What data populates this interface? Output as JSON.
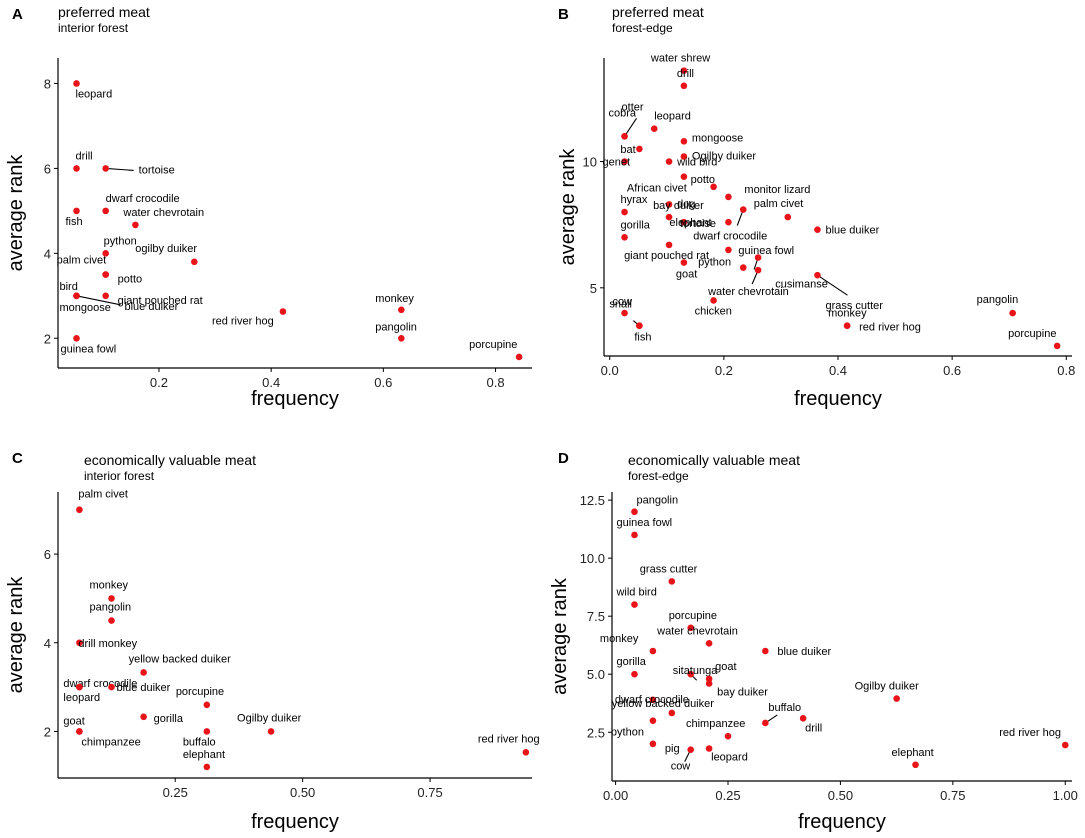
{
  "figure": {
    "colors": {
      "point": "#e8141a",
      "axis": "#000000",
      "leader": "#000000"
    }
  },
  "chart_data": [
    {
      "panel_letter": "A",
      "type": "scatter",
      "title": "preferred meat",
      "subtitle": "interior forest",
      "xlabel": "frequency",
      "ylabel": "average rank",
      "xlim": [
        0.02,
        0.865
      ],
      "ylim": [
        1.3,
        8.6
      ],
      "xticks": [
        0.2,
        0.4,
        0.6,
        0.8
      ],
      "xtick_labels": [
        "0.2",
        "0.4",
        "0.6",
        "0.8"
      ],
      "yticks": [
        2,
        4,
        6,
        8
      ],
      "ytick_labels": [
        "2",
        "4",
        "6",
        "8"
      ],
      "points": [
        {
          "label": "leopard",
          "x": 0.053,
          "y": 8.0
        },
        {
          "label": "drill",
          "x": 0.053,
          "y": 6.0
        },
        {
          "label": "tortoise",
          "x": 0.105,
          "y": 6.0
        },
        {
          "label": "dwarf crocodile",
          "x": 0.105,
          "y": 5.0
        },
        {
          "label": "fish",
          "x": 0.053,
          "y": 5.0
        },
        {
          "label": "water chevrotain",
          "x": 0.158,
          "y": 4.67
        },
        {
          "label": "python",
          "x": 0.105,
          "y": 4.0
        },
        {
          "label": "ogilby duiker",
          "x": 0.263,
          "y": 3.8
        },
        {
          "label": "palm civet",
          "x": 0.105,
          "y": 3.5
        },
        {
          "label": "potto",
          "x": 0.105,
          "y": 3.5
        },
        {
          "label": "bird",
          "x": 0.053,
          "y": 3.0
        },
        {
          "label": "giant pouched rat",
          "x": 0.105,
          "y": 3.0
        },
        {
          "label": "mongoose",
          "x": 0.053,
          "y": 3.0
        },
        {
          "label": "blue duiker",
          "x": 0.053,
          "y": 3.0
        },
        {
          "label": "monkey",
          "x": 0.632,
          "y": 2.67
        },
        {
          "label": "red river hog",
          "x": 0.421,
          "y": 2.63
        },
        {
          "label": "pangolin",
          "x": 0.632,
          "y": 2.0
        },
        {
          "label": "guinea fowl",
          "x": 0.053,
          "y": 2.0
        },
        {
          "label": "porcupine",
          "x": 0.842,
          "y": 1.56
        }
      ]
    },
    {
      "panel_letter": "B",
      "type": "scatter",
      "title": "preferred meat",
      "subtitle": "forest-edge",
      "xlabel": "frequency",
      "ylabel": "average rank",
      "xlim": [
        -0.01,
        0.81
      ],
      "ylim": [
        2.3,
        14.1
      ],
      "xticks": [
        0.0,
        0.2,
        0.4,
        0.6,
        0.8
      ],
      "xtick_labels": [
        "0.0",
        "0.2",
        "0.4",
        "0.6",
        "0.8"
      ],
      "yticks": [
        5,
        10
      ],
      "ytick_labels": [
        "5",
        "10"
      ],
      "points": [
        {
          "label": "water shrew",
          "x": 0.13,
          "y": 13.6
        },
        {
          "label": "drill",
          "x": 0.13,
          "y": 13.0
        },
        {
          "label": "otter",
          "x": 0.026,
          "y": 11.0
        },
        {
          "label": "cobra",
          "x": 0.026,
          "y": 11.0
        },
        {
          "label": "leopard",
          "x": 0.078,
          "y": 11.3
        },
        {
          "label": "mongoose",
          "x": 0.13,
          "y": 10.8
        },
        {
          "label": "Ogilby duiker",
          "x": 0.13,
          "y": 10.2
        },
        {
          "label": "bat",
          "x": 0.052,
          "y": 10.5
        },
        {
          "label": "genet",
          "x": 0.026,
          "y": 10.0
        },
        {
          "label": "wild bird",
          "x": 0.104,
          "y": 10.0
        },
        {
          "label": "African civet",
          "x": 0.13,
          "y": 9.4
        },
        {
          "label": "potto",
          "x": 0.182,
          "y": 9.0
        },
        {
          "label": "monitor lizard",
          "x": 0.208,
          "y": 8.6
        },
        {
          "label": "dog",
          "x": 0.104,
          "y": 8.3
        },
        {
          "label": "hyrax",
          "x": 0.026,
          "y": 8.0
        },
        {
          "label": "bay duiker",
          "x": 0.104,
          "y": 7.8
        },
        {
          "label": "tortoise",
          "x": 0.13,
          "y": 7.6
        },
        {
          "label": "palm civet",
          "x": 0.312,
          "y": 7.8
        },
        {
          "label": "dwarf crocodile",
          "x": 0.234,
          "y": 8.1
        },
        {
          "label": "elephant",
          "x": 0.208,
          "y": 7.6
        },
        {
          "label": "gorilla",
          "x": 0.026,
          "y": 7.0
        },
        {
          "label": "blue duiker",
          "x": 0.364,
          "y": 7.3
        },
        {
          "label": "giant pouched rat",
          "x": 0.104,
          "y": 6.7
        },
        {
          "label": "guinea fowl",
          "x": 0.208,
          "y": 6.5
        },
        {
          "label": "python",
          "x": 0.26,
          "y": 6.2
        },
        {
          "label": "goat",
          "x": 0.13,
          "y": 6.0
        },
        {
          "label": "cusimanse",
          "x": 0.234,
          "y": 5.8
        },
        {
          "label": "water chevrotain",
          "x": 0.26,
          "y": 5.7
        },
        {
          "label": "grass cutter",
          "x": 0.364,
          "y": 5.5
        },
        {
          "label": "chicken",
          "x": 0.182,
          "y": 4.5
        },
        {
          "label": "cow",
          "x": 0.026,
          "y": 4.0
        },
        {
          "label": "snail",
          "x": 0.052,
          "y": 3.5
        },
        {
          "label": "fish",
          "x": 0.052,
          "y": 3.5
        },
        {
          "label": "monkey",
          "x": 0.416,
          "y": 3.5
        },
        {
          "label": "red river hog",
          "x": 0.416,
          "y": 3.5
        },
        {
          "label": "pangolin",
          "x": 0.706,
          "y": 4.0
        },
        {
          "label": "porcupine",
          "x": 0.784,
          "y": 2.7
        }
      ]
    },
    {
      "panel_letter": "C",
      "type": "scatter",
      "title": "economically valuable meat",
      "subtitle": "interior forest",
      "xlabel": "frequency",
      "ylabel": "average rank",
      "xlim": [
        0.02,
        0.95
      ],
      "ylim": [
        0.95,
        7.4
      ],
      "xticks": [
        0.25,
        0.5,
        0.75
      ],
      "xtick_labels": [
        "0.25",
        "0.50",
        "0.75"
      ],
      "yticks": [
        2,
        4,
        6
      ],
      "ytick_labels": [
        "2",
        "4",
        "6"
      ],
      "points": [
        {
          "label": "palm civet",
          "x": 0.062,
          "y": 7.0
        },
        {
          "label": "monkey",
          "x": 0.125,
          "y": 5.0
        },
        {
          "label": "pangolin",
          "x": 0.125,
          "y": 4.5
        },
        {
          "label": "drill monkey",
          "x": 0.062,
          "y": 4.0
        },
        {
          "label": "yellow backed duiker",
          "x": 0.188,
          "y": 3.33
        },
        {
          "label": "dwarf crocodile",
          "x": 0.062,
          "y": 3.0
        },
        {
          "label": "leopard",
          "x": 0.062,
          "y": 3.0
        },
        {
          "label": "blue duiker",
          "x": 0.125,
          "y": 3.0
        },
        {
          "label": "porcupine",
          "x": 0.312,
          "y": 2.6
        },
        {
          "label": "gorilla",
          "x": 0.188,
          "y": 2.33
        },
        {
          "label": "goat",
          "x": 0.062,
          "y": 2.0
        },
        {
          "label": "chimpanzee",
          "x": 0.062,
          "y": 2.0
        },
        {
          "label": "buffalo",
          "x": 0.312,
          "y": 2.0
        },
        {
          "label": "Ogilby duiker",
          "x": 0.438,
          "y": 2.0
        },
        {
          "label": "red river hog",
          "x": 0.938,
          "y": 1.53
        },
        {
          "label": "elephant",
          "x": 0.312,
          "y": 1.2
        }
      ]
    },
    {
      "panel_letter": "D",
      "type": "scatter",
      "title": "economically valuable meat",
      "subtitle": "forest-edge",
      "xlabel": "frequency",
      "ylabel": "average rank",
      "xlim": [
        -0.008,
        1.015
      ],
      "ylim": [
        0.4,
        12.85
      ],
      "xticks": [
        0.0,
        0.25,
        0.5,
        0.75,
        1.0
      ],
      "xtick_labels": [
        "0.00",
        "0.25",
        "0.50",
        "0.75",
        "1.00"
      ],
      "yticks": [
        2.5,
        5.0,
        7.5,
        10.0,
        12.5
      ],
      "ytick_labels": [
        "2.5",
        "5.0",
        "7.5",
        "10.0",
        "12.5"
      ],
      "points": [
        {
          "label": "pangolin",
          "x": 0.042,
          "y": 12.0
        },
        {
          "label": "guinea fowl",
          "x": 0.042,
          "y": 11.0
        },
        {
          "label": "grass cutter",
          "x": 0.125,
          "y": 9.0
        },
        {
          "label": "wild bird",
          "x": 0.042,
          "y": 8.0
        },
        {
          "label": "porcupine",
          "x": 0.167,
          "y": 7.0
        },
        {
          "label": "water chevrotain",
          "x": 0.208,
          "y": 6.33
        },
        {
          "label": "monkey",
          "x": 0.083,
          "y": 6.0
        },
        {
          "label": "sitatunga",
          "x": 0.167,
          "y": 5.0
        },
        {
          "label": "blue duiker",
          "x": 0.333,
          "y": 6.0
        },
        {
          "label": "gorilla",
          "x": 0.042,
          "y": 5.0
        },
        {
          "label": "goat",
          "x": 0.208,
          "y": 4.8
        },
        {
          "label": "bay duiker",
          "x": 0.208,
          "y": 4.6
        },
        {
          "label": "dwarf crocodile",
          "x": 0.083,
          "y": 3.9
        },
        {
          "label": "Ogilby duiker",
          "x": 0.625,
          "y": 3.95
        },
        {
          "label": "yellow backed duiker",
          "x": 0.125,
          "y": 3.33
        },
        {
          "label": "buffalo",
          "x": 0.333,
          "y": 2.9
        },
        {
          "label": "drill",
          "x": 0.417,
          "y": 3.1
        },
        {
          "label": "python",
          "x": 0.083,
          "y": 3.0
        },
        {
          "label": "chimpanzee",
          "x": 0.25,
          "y": 2.33
        },
        {
          "label": "pig",
          "x": 0.083,
          "y": 2.0
        },
        {
          "label": "leopard",
          "x": 0.208,
          "y": 1.8
        },
        {
          "label": "cow",
          "x": 0.167,
          "y": 1.75
        },
        {
          "label": "red river hog",
          "x": 1.0,
          "y": 1.95
        },
        {
          "label": "elephant",
          "x": 0.667,
          "y": 1.1
        }
      ]
    }
  ]
}
